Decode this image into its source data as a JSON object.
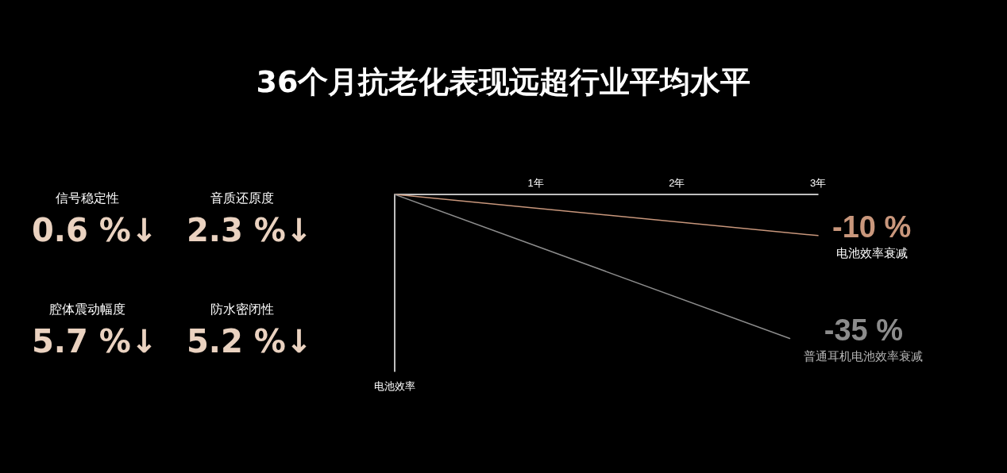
{
  "chart_data": [
    {
      "type": "other",
      "annotations": [
        "信号稳定性",
        "0.6 %↓",
        "音质还原度",
        "2.3 %↓",
        "腔体震动幅度",
        "5.7 %↓",
        "防水密闭性",
        "5.2 %↓"
      ]
    },
    {
      "type": "line",
      "title": "36个月抗老化表现远超行业平均水平",
      "ylabel": "电池效率",
      "xlim": [
        0,
        3
      ],
      "xticks": [
        {
          "value": 1,
          "label": "1年"
        },
        {
          "value": 2,
          "label": "2年"
        },
        {
          "value": 3,
          "label": "3年"
        }
      ],
      "ylim": [
        -43,
        0
      ],
      "tick_labels": "x",
      "legend": false,
      "grid": false,
      "marker": "none",
      "line_style": "solid",
      "series": [
        {
          "name": "电池效率衰减",
          "color": "#c9977c",
          "x": [
            0,
            3
          ],
          "values": [
            0,
            -10
          ],
          "value_labels": [
            null,
            "-10 %"
          ]
        },
        {
          "name": "普通耳机电池效率衰减",
          "color": "#8c8c8c",
          "x": [
            0,
            2.8
          ],
          "values": [
            0,
            -35
          ],
          "value_labels": [
            null,
            "-35 %"
          ]
        }
      ]
    }
  ]
}
